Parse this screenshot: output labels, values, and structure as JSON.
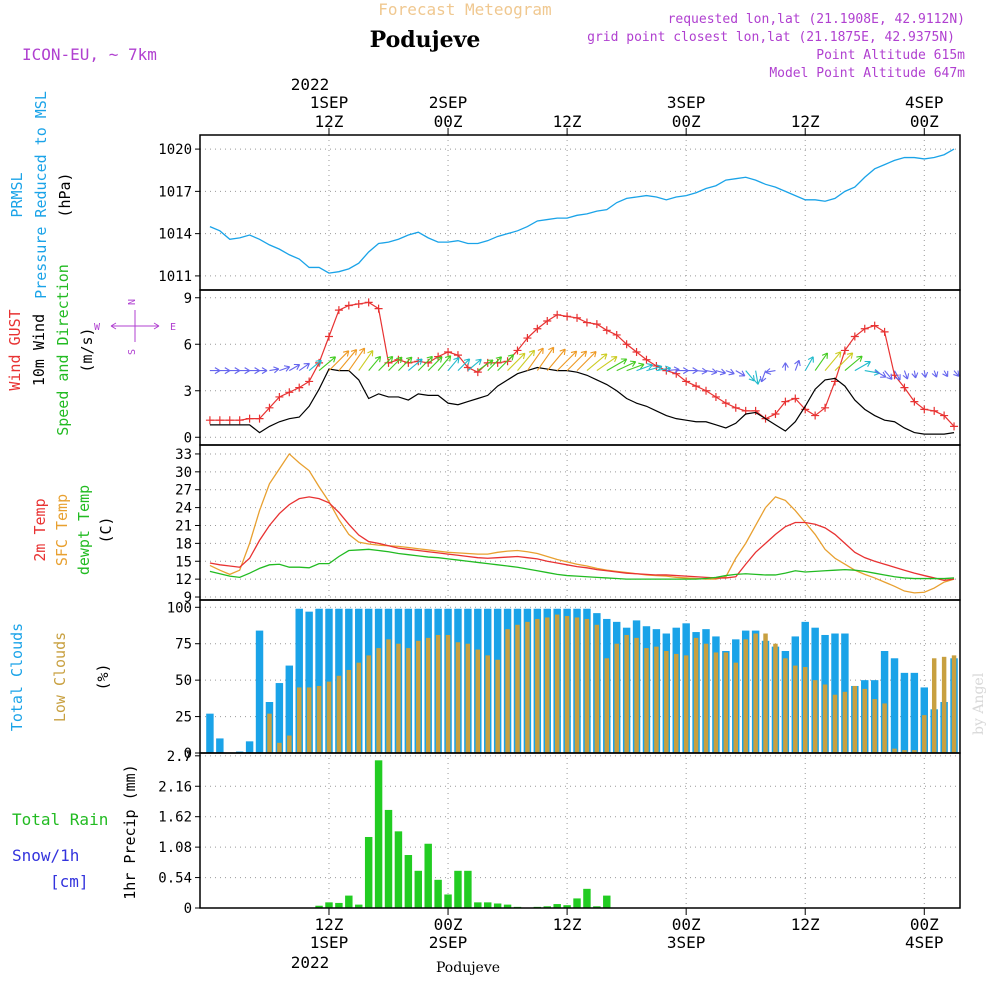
{
  "header": {
    "title": "Forecast Meteogram",
    "location": "Podujeve",
    "model": "ICON-EU, ~ 7km",
    "requested": "requested lon,lat (21.1908E, 42.9112N)",
    "grid_point": "grid point closest lon,lat (21.1875E, 42.9375N)",
    "point_altitude": "Point Altitude 615m",
    "model_altitude": "Model Point Altitude 647m",
    "footer_location": "Podujeve",
    "credit": "by Angel"
  },
  "time_axis": {
    "top_year": "2022",
    "bottom_year": "2022",
    "ticks": [
      {
        "hour": 12,
        "top": [
          "1SEP",
          "12Z"
        ],
        "bottom": [
          "12Z",
          "1SEP"
        ]
      },
      {
        "hour": 24,
        "top": [
          "2SEP",
          "00Z"
        ],
        "bottom": [
          "00Z",
          "2SEP"
        ]
      },
      {
        "hour": 36,
        "top": [
          "",
          "12Z"
        ],
        "bottom": [
          "12Z",
          ""
        ]
      },
      {
        "hour": 48,
        "top": [
          "3SEP",
          "00Z"
        ],
        "bottom": [
          "00Z",
          "3SEP"
        ]
      },
      {
        "hour": 60,
        "top": [
          "",
          "12Z"
        ],
        "bottom": [
          "12Z",
          ""
        ]
      },
      {
        "hour": 72,
        "top": [
          "4SEP",
          "00Z"
        ],
        "bottom": [
          "00Z",
          "4SEP"
        ]
      }
    ]
  },
  "panel_labels": {
    "p1": [
      {
        "text": "PRMSL",
        "color": "#1aa3e8"
      },
      {
        "text": "Pressure Reduced to MSL",
        "color": "#1aa3e8"
      },
      {
        "text": "(hPa)",
        "color": "#000000"
      }
    ],
    "p2": [
      {
        "text": "Wind GUST",
        "color": "#e83232"
      },
      {
        "text": "10m Wind",
        "color": "#000000"
      },
      {
        "text": "Speed and Direction",
        "color": "#22bb22"
      },
      {
        "text": "(m/s)",
        "color": "#000000"
      }
    ],
    "p3": [
      {
        "text": "2m Temp",
        "color": "#e83232"
      },
      {
        "text": "SFC Temp",
        "color": "#e8a030"
      },
      {
        "text": "dewpt Temp",
        "color": "#22bb22"
      },
      {
        "text": "(C)",
        "color": "#000000"
      }
    ],
    "p4": [
      {
        "text": "Total Clouds",
        "color": "#1aa3e8"
      },
      {
        "text": "Low Clouds",
        "color": "#c8a040"
      },
      {
        "text": "(%)",
        "color": "#000000"
      }
    ],
    "p5_left": [
      {
        "text": "Total  Rain",
        "color": "#22bb22"
      },
      {
        "text": "Snow/1h",
        "color": "#3333dd"
      },
      {
        "text": "[cm]",
        "color": "#3333dd"
      }
    ],
    "p5_axis": "1hr Precip (mm)",
    "compass": {
      "n": "N",
      "s": "S",
      "e": "E",
      "w": "W"
    }
  },
  "colors": {
    "pressure": "#1aa3e8",
    "gust": "#e83232",
    "wind": "#000000",
    "t2m": "#e83232",
    "sfc": "#e8a030",
    "dew": "#22bb22",
    "total_clouds": "#1aa3e8",
    "low_clouds": "#c8a040",
    "rain": "#22cc22",
    "title": "#f0c890",
    "header_meta": "#b040d0"
  },
  "chart_data": [
    {
      "type": "line",
      "name": "pressure",
      "ylim": [
        1010,
        1021
      ],
      "yticks": [
        1011,
        1014,
        1017,
        1020
      ],
      "x": [
        0,
        1,
        2,
        3,
        4,
        5,
        6,
        7,
        8,
        9,
        10,
        11,
        12,
        13,
        14,
        15,
        16,
        17,
        18,
        19,
        20,
        21,
        22,
        23,
        24,
        25,
        26,
        27,
        28,
        29,
        30,
        31,
        32,
        33,
        34,
        35,
        36,
        37,
        38,
        39,
        40,
        41,
        42,
        43,
        44,
        45,
        46,
        47,
        48,
        49,
        50,
        51,
        52,
        53,
        54,
        55,
        56,
        57,
        58,
        59,
        60,
        61,
        62,
        63,
        64,
        65,
        66,
        67,
        68,
        69,
        70,
        71,
        72,
        73,
        74,
        75
      ],
      "values": [
        1014.5,
        1014.2,
        1013.6,
        1013.7,
        1013.9,
        1013.6,
        1013.2,
        1012.9,
        1012.5,
        1012.2,
        1011.6,
        1011.6,
        1011.2,
        1011.3,
        1011.5,
        1011.9,
        1012.7,
        1013.3,
        1013.4,
        1013.6,
        1013.9,
        1014.1,
        1013.7,
        1013.4,
        1013.4,
        1013.5,
        1013.3,
        1013.3,
        1013.5,
        1013.8,
        1014.0,
        1014.2,
        1014.5,
        1014.9,
        1015.0,
        1015.1,
        1015.1,
        1015.3,
        1015.4,
        1015.6,
        1015.7,
        1016.2,
        1016.5,
        1016.6,
        1016.7,
        1016.6,
        1016.4,
        1016.6,
        1016.7,
        1016.9,
        1017.2,
        1017.4,
        1017.8,
        1017.9,
        1018.0,
        1017.8,
        1017.5,
        1017.3,
        1017.0,
        1016.7,
        1016.4,
        1016.4,
        1016.3,
        1016.5,
        1017.0,
        1017.3,
        1018.0,
        1018.6,
        1018.9,
        1019.2,
        1019.4,
        1019.4,
        1019.3,
        1019.4,
        1019.6,
        1020.0
      ]
    },
    {
      "type": "line",
      "name": "wind",
      "ylim": [
        -0.5,
        9.5
      ],
      "yticks": [
        0,
        3,
        6,
        9
      ],
      "x": [
        0,
        1,
        2,
        3,
        4,
        5,
        6,
        7,
        8,
        9,
        10,
        11,
        12,
        13,
        14,
        15,
        16,
        17,
        18,
        19,
        20,
        21,
        22,
        23,
        24,
        25,
        26,
        27,
        28,
        29,
        30,
        31,
        32,
        33,
        34,
        35,
        36,
        37,
        38,
        39,
        40,
        41,
        42,
        43,
        44,
        45,
        46,
        47,
        48,
        49,
        50,
        51,
        52,
        53,
        54,
        55,
        56,
        57,
        58,
        59,
        60,
        61,
        62,
        63,
        64,
        65,
        66,
        67,
        68,
        69,
        70,
        71,
        72,
        73,
        74,
        75
      ],
      "gust": [
        1.1,
        1.1,
        1.1,
        1.1,
        1.2,
        1.2,
        1.9,
        2.6,
        2.9,
        3.2,
        3.6,
        4.8,
        6.5,
        8.2,
        8.5,
        8.6,
        8.7,
        8.3,
        4.8,
        5.0,
        4.8,
        4.9,
        4.8,
        5.2,
        5.5,
        5.3,
        4.5,
        4.2,
        4.8,
        4.8,
        4.9,
        5.6,
        6.4,
        7.0,
        7.5,
        7.9,
        7.8,
        7.7,
        7.4,
        7.3,
        6.9,
        6.6,
        6.0,
        5.5,
        5.0,
        4.6,
        4.3,
        4.1,
        3.6,
        3.3,
        3.0,
        2.6,
        2.2,
        1.9,
        1.7,
        1.7,
        1.2,
        1.5,
        2.3,
        2.5,
        1.8,
        1.4,
        1.9,
        3.6,
        5.6,
        6.5,
        7.0,
        7.2,
        6.8,
        4.0,
        3.2,
        2.3,
        1.8,
        1.7,
        1.4,
        0.7
      ],
      "speed": [
        0.8,
        0.8,
        0.8,
        0.8,
        0.8,
        0.3,
        0.7,
        1.0,
        1.2,
        1.3,
        2.0,
        3.1,
        4.4,
        4.3,
        4.3,
        3.7,
        2.5,
        2.8,
        2.6,
        2.6,
        2.4,
        2.8,
        2.7,
        2.7,
        2.2,
        2.1,
        2.3,
        2.5,
        2.7,
        3.3,
        3.7,
        4.1,
        4.3,
        4.5,
        4.4,
        4.3,
        4.3,
        4.2,
        4.0,
        3.7,
        3.4,
        3.0,
        2.5,
        2.2,
        2.0,
        1.7,
        1.4,
        1.2,
        1.1,
        1.0,
        1.0,
        0.8,
        0.6,
        0.9,
        1.5,
        1.6,
        1.2,
        0.8,
        0.4,
        1.0,
        2.0,
        3.1,
        3.7,
        3.8,
        3.3,
        2.4,
        1.8,
        1.4,
        1.1,
        1.0,
        0.6,
        0.3,
        0.2,
        0.2,
        0.2,
        0.3
      ],
      "dir_deg": [
        270,
        270,
        270,
        270,
        270,
        270,
        260,
        250,
        240,
        235,
        230,
        230,
        225,
        220,
        215,
        215,
        220,
        225,
        225,
        225,
        230,
        225,
        225,
        220,
        220,
        225,
        230,
        235,
        225,
        225,
        225,
        220,
        215,
        215,
        220,
        225,
        225,
        225,
        230,
        235,
        240,
        245,
        250,
        250,
        255,
        260,
        265,
        270,
        270,
        275,
        280,
        285,
        290,
        300,
        320,
        350,
        20,
        80,
        180,
        200,
        210,
        215,
        220,
        225,
        230,
        240,
        280,
        300,
        320,
        330,
        340,
        350,
        350,
        340,
        330,
        320
      ]
    },
    {
      "type": "line",
      "name": "temperature",
      "ylim": [
        8.5,
        34.5
      ],
      "yticks": [
        9,
        12,
        15,
        18,
        21,
        24,
        27,
        30,
        33
      ],
      "x": [
        0,
        1,
        2,
        3,
        4,
        5,
        6,
        7,
        8,
        9,
        10,
        11,
        12,
        13,
        14,
        15,
        16,
        17,
        18,
        19,
        20,
        21,
        22,
        23,
        24,
        25,
        26,
        27,
        28,
        29,
        30,
        31,
        32,
        33,
        34,
        35,
        36,
        37,
        38,
        39,
        40,
        41,
        42,
        43,
        44,
        45,
        46,
        47,
        48,
        49,
        50,
        51,
        52,
        53,
        54,
        55,
        56,
        57,
        58,
        59,
        60,
        61,
        62,
        63,
        64,
        65,
        66,
        67,
        68,
        69,
        70,
        71,
        72,
        73,
        74,
        75
      ],
      "t2m": [
        14.7,
        14.4,
        14.2,
        14.0,
        15.5,
        18.5,
        21.0,
        23.0,
        24.5,
        25.5,
        25.8,
        25.5,
        24.8,
        23.2,
        21.2,
        19.4,
        18.3,
        18.0,
        17.6,
        17.2,
        17.0,
        16.8,
        16.6,
        16.4,
        16.2,
        16.0,
        15.8,
        15.6,
        15.5,
        15.6,
        15.7,
        15.8,
        15.6,
        15.4,
        15.0,
        14.7,
        14.4,
        14.1,
        13.9,
        13.6,
        13.4,
        13.2,
        13.0,
        12.9,
        12.8,
        12.7,
        12.7,
        12.6,
        12.5,
        12.4,
        12.3,
        12.2,
        12.2,
        12.4,
        14.5,
        16.5,
        18.0,
        19.5,
        20.8,
        21.5,
        21.5,
        21.2,
        20.6,
        19.5,
        18.0,
        16.5,
        15.6,
        15.0,
        14.5,
        14.0,
        13.5,
        13.0,
        12.6,
        12.2,
        11.8,
        12.0
      ],
      "sfc": [
        14.3,
        13.5,
        12.8,
        13.5,
        18.0,
        23.5,
        28.0,
        30.5,
        33.0,
        31.5,
        30.2,
        27.5,
        25.0,
        22.0,
        19.5,
        18.2,
        17.9,
        17.7,
        17.6,
        17.5,
        17.3,
        17.1,
        16.9,
        16.7,
        16.5,
        16.4,
        16.3,
        16.2,
        16.2,
        16.5,
        16.7,
        16.8,
        16.6,
        16.3,
        15.8,
        15.3,
        14.9,
        14.5,
        14.2,
        13.8,
        13.5,
        13.3,
        13.1,
        12.9,
        12.7,
        12.6,
        12.5,
        12.3,
        12.2,
        12.1,
        12.0,
        12.0,
        12.4,
        15.5,
        18.0,
        21.0,
        24.0,
        25.8,
        25.2,
        23.5,
        21.5,
        19.5,
        17.0,
        15.5,
        14.5,
        13.5,
        12.8,
        12.2,
        11.5,
        10.8,
        10.0,
        9.7,
        9.8,
        10.5,
        11.5,
        12.0
      ],
      "dew": [
        13.3,
        12.9,
        12.5,
        12.3,
        13.0,
        13.8,
        14.4,
        14.5,
        14.0,
        14.0,
        13.9,
        14.6,
        14.6,
        15.8,
        16.8,
        16.9,
        17.0,
        16.8,
        16.6,
        16.3,
        16.1,
        15.9,
        15.7,
        15.6,
        15.4,
        15.2,
        15.0,
        14.8,
        14.6,
        14.4,
        14.2,
        14.0,
        13.7,
        13.4,
        13.1,
        12.8,
        12.6,
        12.5,
        12.4,
        12.3,
        12.2,
        12.1,
        12.0,
        12.0,
        12.0,
        12.0,
        12.0,
        12.0,
        12.0,
        12.0,
        12.1,
        12.3,
        12.6,
        12.8,
        12.9,
        12.8,
        12.7,
        12.7,
        13.0,
        13.4,
        13.2,
        13.3,
        13.4,
        13.5,
        13.6,
        13.5,
        13.3,
        13.0,
        12.7,
        12.4,
        12.2,
        12.1,
        12.1,
        12.1,
        12.1,
        12.2
      ]
    },
    {
      "type": "bar",
      "name": "clouds",
      "ylim": [
        0,
        105
      ],
      "yticks": [
        0,
        25,
        50,
        75,
        100
      ],
      "x": [
        0,
        1,
        2,
        3,
        4,
        5,
        6,
        7,
        8,
        9,
        10,
        11,
        12,
        13,
        14,
        15,
        16,
        17,
        18,
        19,
        20,
        21,
        22,
        23,
        24,
        25,
        26,
        27,
        28,
        29,
        30,
        31,
        32,
        33,
        34,
        35,
        36,
        37,
        38,
        39,
        40,
        41,
        42,
        43,
        44,
        45,
        46,
        47,
        48,
        49,
        50,
        51,
        52,
        53,
        54,
        55,
        56,
        57,
        58,
        59,
        60,
        61,
        62,
        63,
        64,
        65,
        66,
        67,
        68,
        69,
        70,
        71,
        72,
        73,
        74,
        75
      ],
      "total": [
        27,
        10,
        0,
        1,
        8,
        84,
        35,
        48,
        60,
        99,
        97,
        99,
        99,
        99,
        99,
        99,
        99,
        99,
        99,
        99,
        99,
        99,
        99,
        99,
        99,
        99,
        99,
        99,
        99,
        99,
        99,
        99,
        99,
        99,
        99,
        99,
        99,
        99,
        99,
        96,
        92,
        90,
        86,
        91,
        87,
        85,
        82,
        86,
        89,
        83,
        85,
        80,
        70,
        78,
        84,
        84,
        77,
        73,
        70,
        80,
        90,
        86,
        81,
        82,
        82,
        46,
        50,
        50,
        70,
        65,
        55,
        55,
        45,
        30,
        35,
        65
      ],
      "low": [
        0,
        0,
        0,
        0,
        0,
        0,
        27,
        7,
        12,
        45,
        45,
        46,
        49,
        53,
        57,
        62,
        67,
        72,
        78,
        75,
        72,
        77,
        79,
        81,
        81,
        76,
        75,
        71,
        67,
        64,
        85,
        88,
        90,
        92,
        93,
        95,
        94,
        93,
        92,
        88,
        65,
        75,
        81,
        79,
        72,
        73,
        70,
        68,
        67,
        79,
        75,
        69,
        69,
        62,
        78,
        82,
        82,
        75,
        65,
        60,
        59,
        50,
        47,
        40,
        42,
        46,
        44,
        37,
        34,
        3,
        2,
        2,
        26,
        65,
        66,
        67
      ]
    },
    {
      "type": "bar",
      "name": "precipitation",
      "ylim": [
        0,
        2.75
      ],
      "yticks": [
        0,
        0.54,
        1.08,
        1.62,
        2.16,
        2.7
      ],
      "x": [
        0,
        1,
        2,
        3,
        4,
        5,
        6,
        7,
        8,
        9,
        10,
        11,
        12,
        13,
        14,
        15,
        16,
        17,
        18,
        19,
        20,
        21,
        22,
        23,
        24,
        25,
        26,
        27,
        28,
        29,
        30,
        31,
        32,
        33,
        34,
        35,
        36,
        37,
        38,
        39,
        40,
        41,
        42,
        43,
        44,
        45,
        46,
        47,
        48,
        49,
        50,
        51,
        52,
        53,
        54,
        55,
        56,
        57,
        58,
        59,
        60,
        61,
        62,
        63,
        64,
        65,
        66,
        67,
        68,
        69,
        70,
        71,
        72,
        73,
        74,
        75
      ],
      "rain": [
        0,
        0,
        0,
        0,
        0,
        0,
        0,
        0,
        0,
        0,
        0,
        0.04,
        0.1,
        0.09,
        0.22,
        0.06,
        1.26,
        2.62,
        1.74,
        1.36,
        0.94,
        0.66,
        1.14,
        0.5,
        0.24,
        0.66,
        0.66,
        0.1,
        0.1,
        0.08,
        0.06,
        0.02,
        0,
        0.02,
        0.03,
        0.07,
        0.05,
        0.17,
        0.34,
        0.03,
        0.22,
        0,
        0,
        0,
        0,
        0,
        0,
        0,
        0,
        0,
        0,
        0,
        0,
        0,
        0,
        0,
        0,
        0,
        0,
        0,
        0,
        0,
        0,
        0,
        0,
        0,
        0,
        0,
        0,
        0,
        0,
        0,
        0,
        0,
        0,
        0
      ]
    }
  ]
}
